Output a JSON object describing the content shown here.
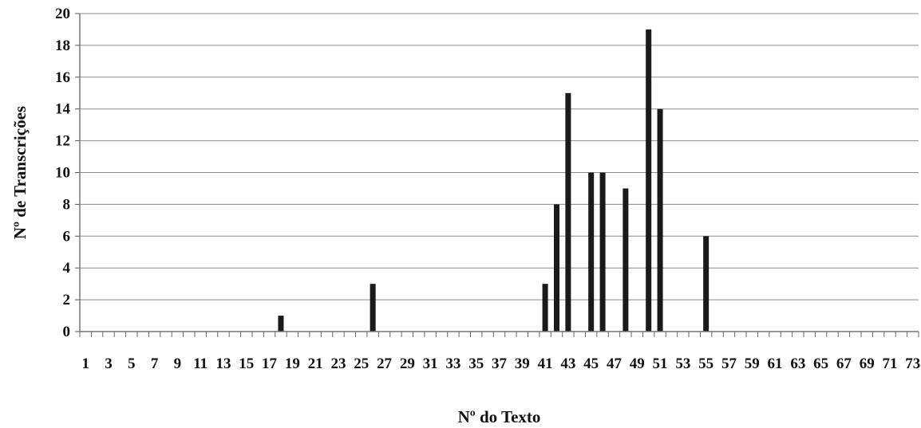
{
  "chart_data": {
    "type": "bar",
    "title": "",
    "xlabel": "Nº do Texto",
    "ylabel": "Nº de Transcrições",
    "ylim": [
      0,
      20
    ],
    "yticks": [
      0,
      2,
      4,
      6,
      8,
      10,
      12,
      14,
      16,
      18,
      20
    ],
    "grid": "horizontal",
    "legend": "none",
    "bar_color": "#1a1a1a",
    "categories": [
      1,
      2,
      3,
      4,
      5,
      6,
      7,
      8,
      9,
      10,
      11,
      12,
      13,
      14,
      15,
      16,
      17,
      18,
      19,
      20,
      21,
      22,
      23,
      24,
      25,
      26,
      27,
      28,
      29,
      30,
      31,
      32,
      33,
      34,
      35,
      36,
      37,
      38,
      39,
      40,
      41,
      42,
      43,
      44,
      45,
      46,
      47,
      48,
      49,
      50,
      51,
      52,
      53,
      54,
      55,
      56,
      57,
      58,
      59,
      60,
      61,
      62,
      63,
      64,
      65,
      66,
      67,
      68,
      69,
      70,
      71,
      72,
      73
    ],
    "xtick_labels": [
      1,
      3,
      5,
      7,
      9,
      11,
      13,
      15,
      17,
      19,
      21,
      23,
      25,
      27,
      29,
      31,
      33,
      35,
      37,
      39,
      41,
      43,
      45,
      47,
      49,
      51,
      53,
      55,
      57,
      59,
      61,
      63,
      65,
      67,
      69,
      71,
      73
    ],
    "values": [
      0,
      0,
      0,
      0,
      0,
      0,
      0,
      0,
      0,
      0,
      0,
      0,
      0,
      0,
      0,
      0,
      0,
      1,
      0,
      0,
      0,
      0,
      0,
      0,
      0,
      3,
      0,
      0,
      0,
      0,
      0,
      0,
      0,
      0,
      0,
      0,
      0,
      0,
      0,
      0,
      3,
      8,
      15,
      0,
      10,
      10,
      0,
      9,
      0,
      19,
      14,
      0,
      0,
      0,
      6,
      0,
      0,
      0,
      0,
      0,
      0,
      0,
      0,
      0,
      0,
      0,
      0,
      0,
      0,
      0,
      0,
      0,
      0
    ]
  }
}
